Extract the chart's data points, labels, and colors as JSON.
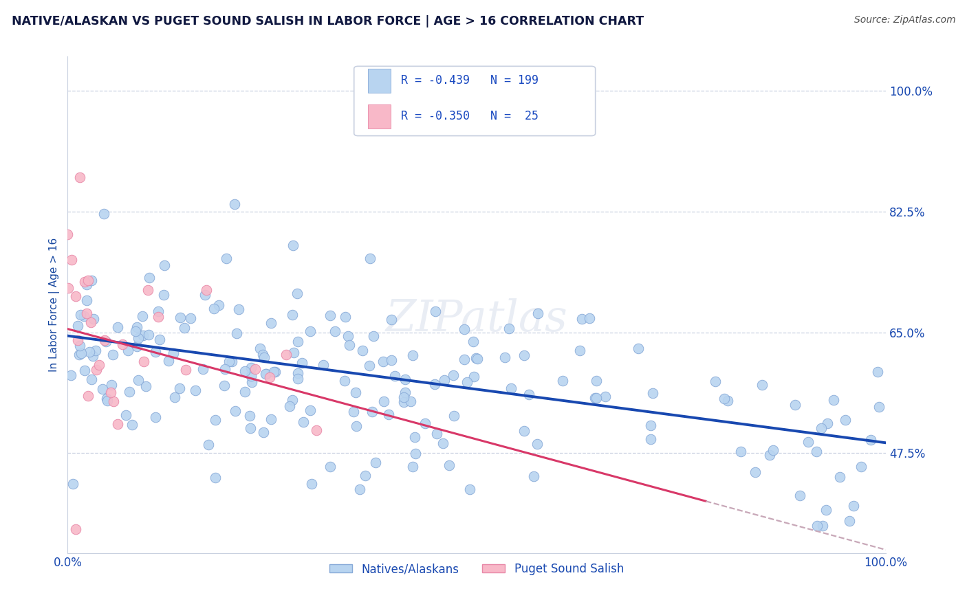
{
  "title": "NATIVE/ALASKAN VS PUGET SOUND SALISH IN LABOR FORCE | AGE > 16 CORRELATION CHART",
  "source_text": "Source: ZipAtlas.com",
  "ylabel": "In Labor Force | Age > 16",
  "watermark": "ZIPatlas",
  "series1_label": "Natives/Alaskans",
  "series1_color": "#b8d4f0",
  "series1_edge": "#88aad8",
  "series2_label": "Puget Sound Salish",
  "series2_color": "#f8b8c8",
  "series2_edge": "#e888a8",
  "series1_R": -0.439,
  "series1_N": 199,
  "series2_R": -0.35,
  "series2_N": 25,
  "trend1_color": "#1848b0",
  "trend2_color": "#d83868",
  "trend2_dash_color": "#c8a8b8",
  "xlim": [
    0.0,
    1.0
  ],
  "ylim": [
    0.33,
    1.05
  ],
  "yticks": [
    0.475,
    0.65,
    0.825,
    1.0
  ],
  "ytick_labels": [
    "47.5%",
    "65.0%",
    "82.5%",
    "100.0%"
  ],
  "xticks": [
    0.0,
    0.1,
    0.2,
    0.3,
    0.4,
    0.5,
    0.6,
    0.7,
    0.8,
    0.9,
    1.0
  ],
  "xtick_labels": [
    "0.0%",
    "",
    "",
    "",
    "",
    "",
    "",
    "",
    "",
    "",
    "100.0%"
  ],
  "legend_color": "#1848c0",
  "bg_color": "#ffffff",
  "grid_color": "#c8d0e0",
  "title_color": "#101840",
  "axis_label_color": "#1848a0",
  "tick_label_color": "#1848b0",
  "seed": 7,
  "n1": 199,
  "n2": 25,
  "slope1": -0.155,
  "intercept1": 0.645,
  "slope2": -0.32,
  "intercept2": 0.655
}
